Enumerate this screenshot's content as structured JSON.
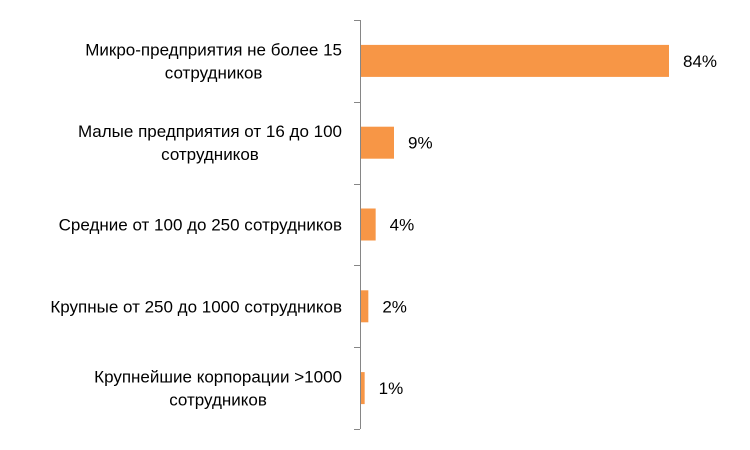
{
  "chart_data": {
    "type": "bar",
    "orientation": "horizontal",
    "categories": [
      [
        "Микро-предприятия не более 15",
        "сотрудников"
      ],
      [
        "Малые предприятия от 16 до 100",
        "сотрудников"
      ],
      [
        "Средние от 100 до 250 сотрудников"
      ],
      [
        "Крупные от 250 до 1000 сотрудников"
      ],
      [
        "Крупнейшие корпорации >1000",
        "сотрудников"
      ]
    ],
    "values": [
      84,
      9,
      4,
      2,
      1
    ],
    "value_labels": [
      "84%",
      "9%",
      "4%",
      "2%",
      "1%"
    ],
    "unit": "%",
    "xlim": [
      0,
      100
    ],
    "grid": false,
    "legend": "none",
    "colors": {
      "bar": "#F79646",
      "axis": "#868686",
      "text": "#000000"
    }
  }
}
